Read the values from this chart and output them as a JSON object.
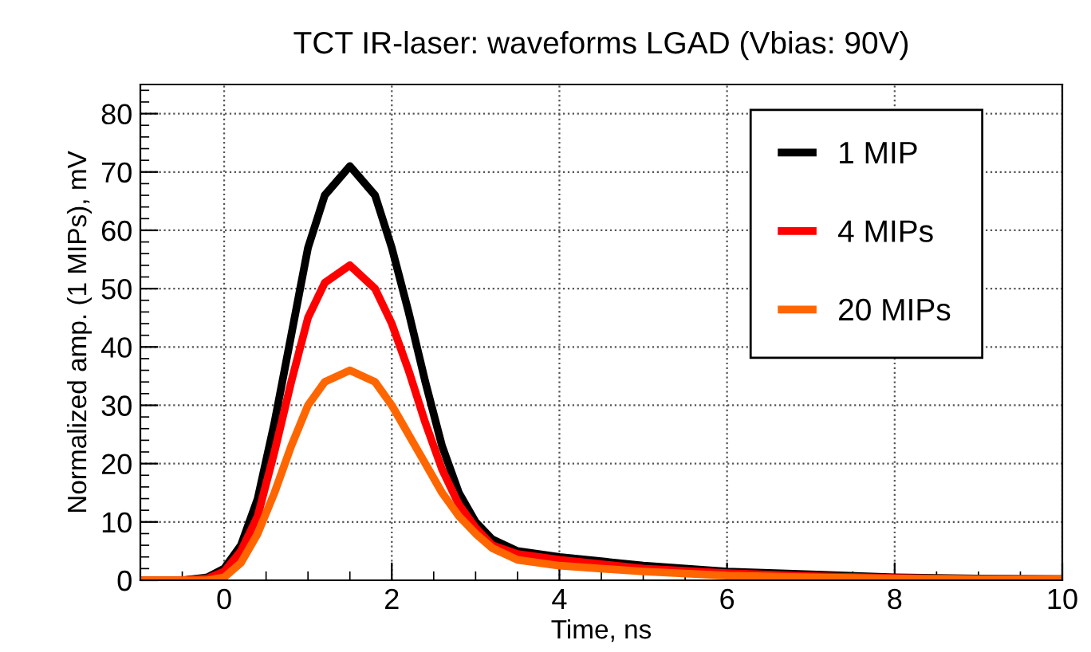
{
  "chart_data": {
    "type": "line",
    "title": "TCT IR-laser: waveforms LGAD (Vbias: 90V)",
    "xlabel": "Time, ns",
    "ylabel": "Normalized amp. (1 MIPs), mV",
    "xlim": [
      -1,
      10
    ],
    "ylim": [
      0,
      85
    ],
    "xticks": [
      0,
      2,
      4,
      6,
      8,
      10
    ],
    "yticks": [
      0,
      10,
      20,
      30,
      40,
      50,
      60,
      70,
      80
    ],
    "grid": true,
    "legend": "top right",
    "line_style": "solid",
    "marker": "none",
    "x": [
      -1,
      -0.5,
      -0.2,
      0,
      0.2,
      0.4,
      0.6,
      0.8,
      1.0,
      1.2,
      1.5,
      1.8,
      2.0,
      2.2,
      2.4,
      2.6,
      2.8,
      3.0,
      3.2,
      3.5,
      4,
      5,
      6,
      7,
      8,
      9,
      10
    ],
    "series": [
      {
        "name": "1 MIP",
        "color": "#000000",
        "values": [
          0,
          0,
          0.5,
          2,
          6,
          14,
          27,
          42,
          57,
          66,
          71,
          66,
          57,
          46,
          34,
          23,
          15,
          10,
          7,
          5,
          4,
          2.5,
          1.5,
          1,
          0.5,
          0.3,
          0.2
        ]
      },
      {
        "name": "4 MIPs",
        "color": "#ff0000",
        "values": [
          0,
          0,
          0.3,
          1.5,
          5,
          11,
          22,
          34,
          45,
          51,
          54,
          50,
          44,
          36,
          27,
          19,
          13,
          9,
          6,
          4.5,
          3.5,
          2,
          1.2,
          0.7,
          0.4,
          0.2,
          0.2
        ]
      },
      {
        "name": "20 MIPs",
        "color": "#ff6600",
        "values": [
          0,
          0,
          0,
          0.5,
          3,
          8,
          15,
          23,
          30,
          34,
          36,
          34,
          30,
          25,
          20,
          15,
          11,
          8,
          5.5,
          3.5,
          2.5,
          1.5,
          0.8,
          0.5,
          0.3,
          0.2,
          0.2
        ]
      }
    ]
  }
}
